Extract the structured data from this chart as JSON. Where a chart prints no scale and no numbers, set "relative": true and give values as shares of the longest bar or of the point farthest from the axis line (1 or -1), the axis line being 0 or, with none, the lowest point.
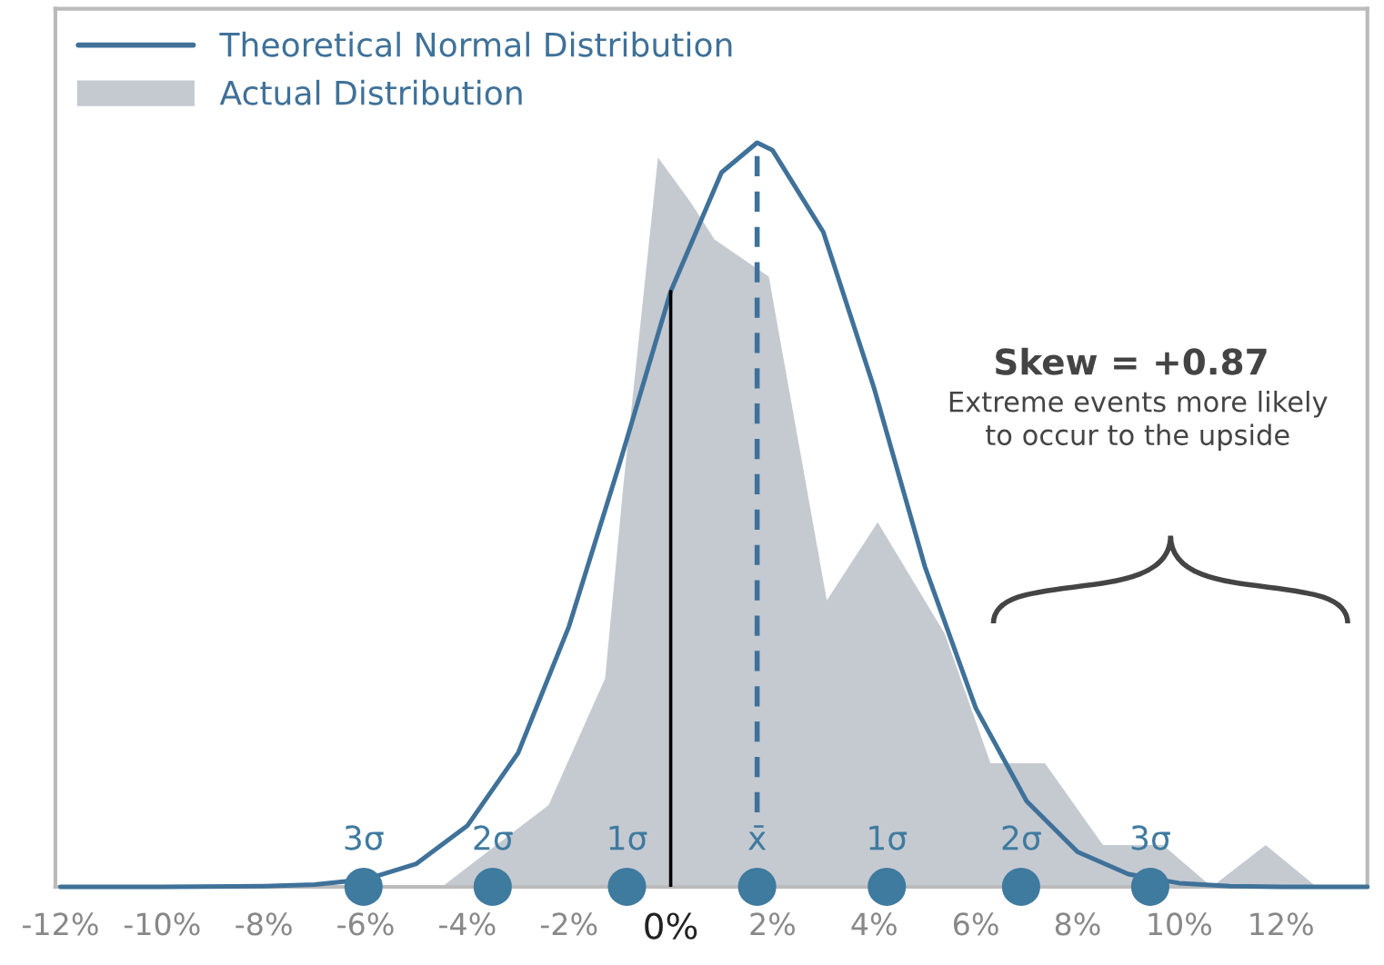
{
  "chart_data": {
    "type": "area",
    "relative": true,
    "xlim": [
      -12.1,
      13.7
    ],
    "xticks": [
      {
        "value": -12,
        "label": "-12%"
      },
      {
        "value": -10,
        "label": "-10%"
      },
      {
        "value": -8,
        "label": "-8%"
      },
      {
        "value": -6,
        "label": "-6%"
      },
      {
        "value": -4,
        "label": "-4%"
      },
      {
        "value": -2,
        "label": "-2%"
      },
      {
        "value": 0,
        "label": "0%"
      },
      {
        "value": 2,
        "label": "2%"
      },
      {
        "value": 4,
        "label": "4%"
      },
      {
        "value": 6,
        "label": "6%"
      },
      {
        "value": 8,
        "label": "8%"
      },
      {
        "value": 10,
        "label": "10%"
      },
      {
        "value": 12,
        "label": "12%"
      }
    ],
    "series": [
      {
        "name": "Actual Distribution",
        "color": "#c5cad1",
        "x": [
          -4.5,
          -2.4,
          -1.29,
          -0.93,
          -0.25,
          0.39,
          0.86,
          1.93,
          3.07,
          4.07,
          5.39,
          6.29,
          7.36,
          8.5,
          9.68,
          10.64,
          11.7,
          12.7
        ],
        "values": [
          0,
          0.11,
          0.28,
          0.54,
          0.98,
          0.92,
          0.87,
          0.82,
          0.385,
          0.49,
          0.34,
          0.166,
          0.166,
          0.056,
          0.056,
          0,
          0.056,
          0
        ]
      },
      {
        "name": "Theoretical Normal Distribution",
        "type": "line",
        "color": "#3f7199",
        "x": [
          -12,
          -10,
          -8,
          -7,
          -6,
          -5,
          -4,
          -3,
          -2,
          -1,
          0,
          1,
          1.7,
          2,
          3,
          4,
          5,
          6,
          7,
          8,
          9,
          10,
          11,
          12,
          13.7
        ],
        "values": [
          0,
          0,
          0.001,
          0.003,
          0.01,
          0.031,
          0.082,
          0.18,
          0.35,
          0.57,
          0.8,
          0.96,
          1,
          0.99,
          0.88,
          0.67,
          0.43,
          0.24,
          0.115,
          0.047,
          0.017,
          0.005,
          0.001,
          0,
          0
        ]
      },
      {
        "type": "line",
        "color": "#3f7199",
        "line_style": "dashed",
        "x": [
          1.7,
          1.7
        ],
        "values": [
          0.1,
          1
        ]
      },
      {
        "type": "scatter",
        "color": "#3f7a9f",
        "marker": "circle",
        "x": [
          -6.04,
          -3.5,
          -0.86,
          1.7,
          4.25,
          6.89,
          9.43
        ],
        "values": [
          0,
          0,
          0,
          0,
          0,
          0,
          0
        ]
      }
    ],
    "annotations": [
      {
        "text": "3σ",
        "x": -6.04,
        "y": 0
      },
      {
        "text": "2σ",
        "x": -3.5,
        "y": 0
      },
      {
        "text": "1σ",
        "x": -0.86,
        "y": 0
      },
      {
        "text": "x̄",
        "x": 1.7,
        "y": 0
      },
      {
        "text": "1σ",
        "x": 4.25,
        "y": 0
      },
      {
        "text": "2σ",
        "x": 6.89,
        "y": 0
      },
      {
        "text": "3σ",
        "x": 9.43,
        "y": 0
      },
      "Skew = +0.87",
      "Extreme events more likely\nto occur to the upside"
    ],
    "ref_lines": [
      {
        "axis": "x",
        "value": 0,
        "color": "#000000",
        "line_style": "solid"
      }
    ],
    "legend": "top left"
  }
}
